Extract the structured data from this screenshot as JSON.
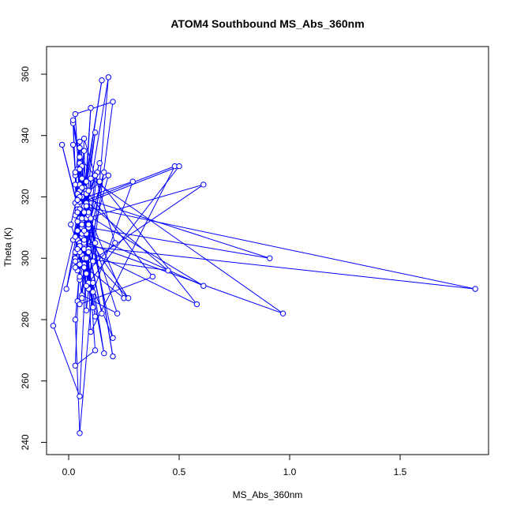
{
  "chart_data": {
    "type": "line",
    "title": "ATOM4 Southbound MS_Abs_360nm",
    "xlabel": "MS_Abs_360nm",
    "ylabel": "Theta (K)",
    "xlim": [
      -0.1,
      1.9
    ],
    "ylim": [
      236,
      369
    ],
    "xticks": [
      0.0,
      0.5,
      1.0,
      1.5
    ],
    "xtick_labels": [
      "0.0",
      "0.5",
      "1.0",
      "1.5"
    ],
    "yticks": [
      240,
      260,
      280,
      300,
      320,
      340,
      360
    ],
    "ytick_labels": [
      "240",
      "260",
      "280",
      "300",
      "320",
      "340",
      "360"
    ],
    "grid": false,
    "legend": "none",
    "colors": {
      "series": "#0000ff",
      "axes": "#000000",
      "background": "#ffffff"
    },
    "marker": "open-circle",
    "series": [
      {
        "x": [
          0.02,
          0.05,
          0.08,
          0.03,
          0.06,
          0.1,
          0.04,
          0.07,
          0.12,
          0.05,
          0.03,
          0.09,
          0.06,
          0.15,
          0.04,
          0.02,
          0.07,
          0.11,
          0.05,
          0.08,
          0.14,
          0.18,
          0.06,
          0.03,
          0.2,
          0.09,
          0.05,
          0.48,
          0.1,
          0.07,
          0.03,
          0.12,
          0.04,
          0.61,
          0.08,
          0.06,
          0.22,
          0.05,
          0.91,
          0.09,
          0.04,
          0.07,
          1.84,
          0.06,
          0.13,
          0.05,
          0.38,
          0.08,
          0.04,
          0.97,
          0.1,
          0.06,
          0.25,
          0.09,
          0.05,
          0.58,
          0.07,
          0.04,
          0.29,
          0.11,
          0.06,
          0.08,
          0.16,
          0.05,
          0.21,
          0.07,
          0.03,
          0.12,
          0.06,
          0.2,
          0.09,
          0.05,
          -0.07,
          0.04,
          0.08,
          0.03,
          0.05,
          0.11,
          0.16,
          0.06,
          0.04,
          0.2,
          0.07,
          0.03,
          0.05,
          0.09,
          0.04,
          0.06,
          0.12,
          0.05,
          0.07,
          0.14,
          0.04,
          0.06,
          0.03,
          0.08,
          0.05,
          0.02,
          0.1,
          0.04,
          0.06,
          0.18,
          0.07,
          0.01,
          0.05,
          0.09,
          0.04,
          0.5,
          0.08,
          0.06,
          0.03,
          0.05,
          0.07,
          0.04,
          0.15,
          0.06,
          -0.01,
          0.08,
          0.05,
          0.11,
          0.04,
          0.07,
          0.03,
          0.06,
          0.09,
          0.05,
          0.04,
          0.61,
          0.08,
          0.06,
          0.02,
          0.05,
          0.07,
          0.45,
          0.04,
          0.06,
          0.03,
          0.08,
          0.05,
          0.27,
          0.04,
          0.07,
          0.12,
          0.05,
          0.06,
          0.03,
          0.08,
          0.04,
          0.05,
          0.07,
          -0.03,
          0.06,
          0.04,
          0.08,
          0.05,
          0.03,
          0.07,
          0.06,
          0.04,
          0.09
        ],
        "y": [
          337,
          312,
          295,
          318,
          301,
          349,
          286,
          323,
          305,
          338,
          327,
          292,
          316,
          358,
          309,
          344,
          321,
          299,
          331,
          283,
          325,
          359,
          307,
          347,
          351,
          290,
          318,
          330,
          276,
          335,
          302,
          341,
          296,
          324,
          313,
          288,
          282,
          320,
          300,
          310,
          329,
          304,
          290,
          317,
          328,
          285,
          294,
          322,
          306,
          282,
          326,
          298,
          287,
          314,
          333,
          285,
          303,
          319,
          325,
          289,
          312,
          308,
          328,
          293,
          305,
          339,
          265,
          270,
          330,
          268,
          315,
          255,
          278,
          312,
          321,
          280,
          243,
          292,
          269,
          308,
          303,
          274,
          317,
          297,
          336,
          311,
          299,
          287,
          327,
          322,
          315,
          331,
          309,
          326,
          300,
          318,
          294,
          345,
          313,
          306,
          320,
          327,
          298,
          311,
          324,
          303,
          317,
          330,
          291,
          308,
          314,
          329,
          297,
          321,
          282,
          312,
          290,
          325,
          305,
          284,
          319,
          297,
          328,
          310,
          322,
          302,
          316,
          291,
          308,
          323,
          306,
          313,
          300,
          296,
          321,
          311,
          299,
          318,
          304,
          287,
          312,
          305,
          281,
          316,
          326,
          307,
          300,
          315,
          320,
          309,
          337,
          311,
          303,
          317,
          298,
          324,
          306,
          313,
          319,
          302
        ]
      }
    ]
  }
}
